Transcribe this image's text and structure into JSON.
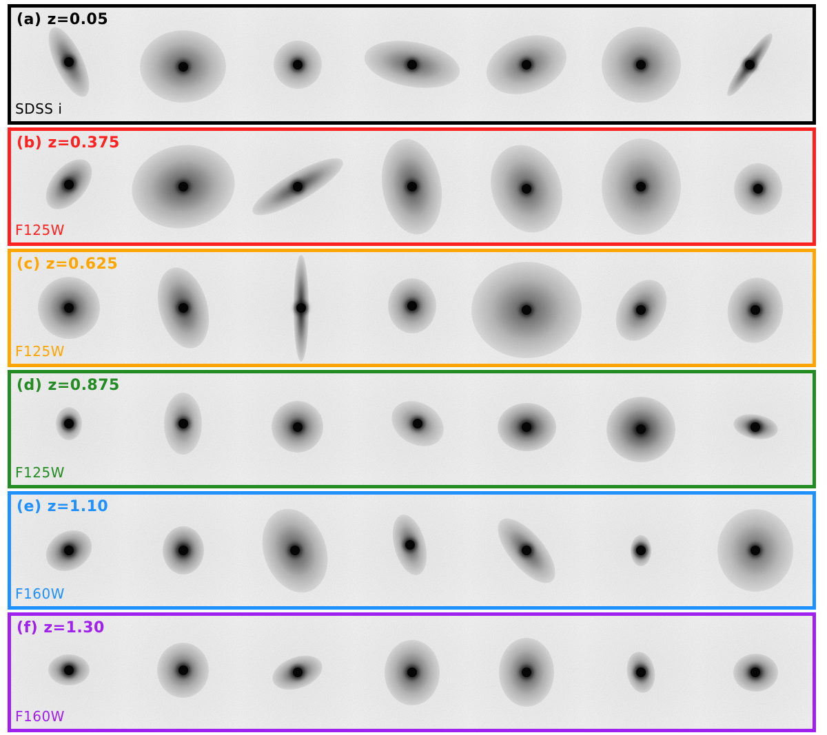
{
  "panels": [
    {
      "id": "a",
      "label": "(a) z=0.05",
      "filter": "SDSS i",
      "color": "#000000"
    },
    {
      "id": "b",
      "label": "(b) z=0.375",
      "filter": "F125W",
      "color": "#ff2020"
    },
    {
      "id": "c",
      "label": "(c) z=0.625",
      "filter": "F125W",
      "color": "#ffa500"
    },
    {
      "id": "d",
      "label": "(d) z=0.875",
      "filter": "F125W",
      "color": "#228b22"
    },
    {
      "id": "e",
      "label": "(e) z=1.10",
      "filter": "F160W",
      "color": "#1e90ff"
    },
    {
      "id": "f",
      "label": "(f) z=1.30",
      "filter": "F160W",
      "color": "#a020f0"
    }
  ]
}
